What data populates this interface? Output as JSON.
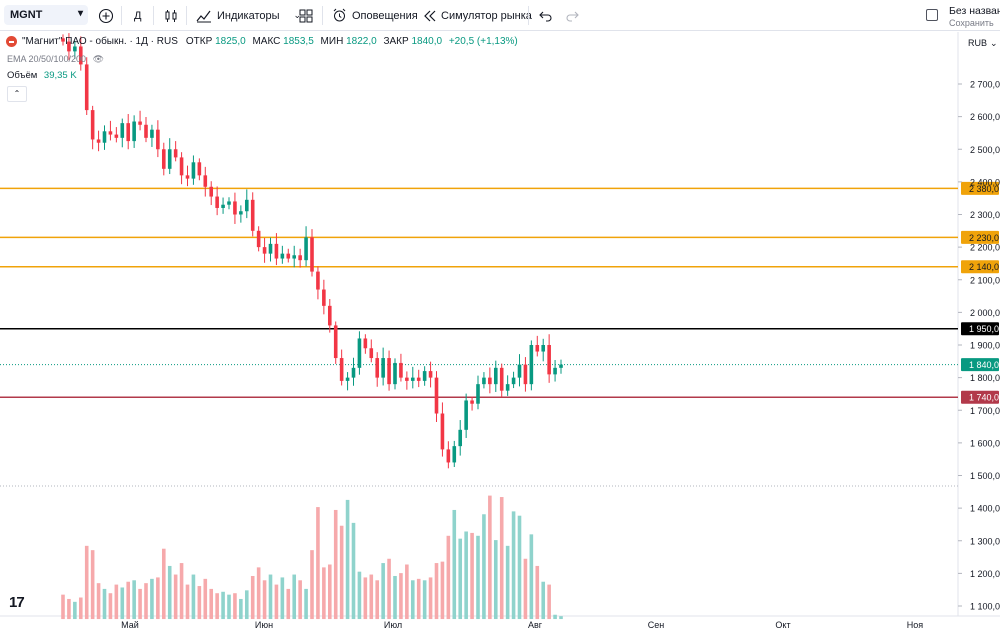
{
  "toolbar": {
    "symbol": "MGNT",
    "interval": "Д",
    "indicators": "Индикаторы",
    "alerts": "Оповещения",
    "replay": "Симулятор рынка",
    "layout_name": "Без названия",
    "save": "Сохранить"
  },
  "legend": {
    "title": "\"Магнит\" ПАО - обыкн. · 1Д · RUS",
    "open_label": "ОТКР",
    "open": "1825,0",
    "high_label": "МАКС",
    "high": "1853,5",
    "low_label": "МИН",
    "low": "1822,0",
    "close_label": "ЗАКР",
    "close": "1840,0",
    "change": "+20,5 (+1,13%)",
    "ema": "EMA 20/50/100/200",
    "volume_label": "Объём",
    "volume_value": "39,35 K"
  },
  "currency": "RUB",
  "colors": {
    "up": "#089981",
    "down": "#f23645",
    "vol_up": "#8fd3cc",
    "vol_down": "#f6a9ab",
    "level": "#f0a30a",
    "support": "#b2394a",
    "price": "#089981"
  },
  "chart_data": {
    "type": "candlestick",
    "y_unit": "RUB",
    "ylim": [
      1060,
      2830
    ],
    "y_ticks": [
      "2700,0",
      "2600,0",
      "2500,0",
      "2400,0",
      "2300,0",
      "2200,0",
      "2100,0",
      "2000,0",
      "1900,0",
      "1800,0",
      "1700,0",
      "1600,0",
      "1500,0",
      "1400,0",
      "1300,0",
      "1200,0",
      "1100,0"
    ],
    "x_labels": [
      "Май",
      "Июн",
      "Июл",
      "Авг",
      "Сен",
      "Окт",
      "Ноя"
    ],
    "horizontal_levels": [
      {
        "label": "2 380,0",
        "value": 2380,
        "color": "#f0a30a"
      },
      {
        "label": "2 230,0",
        "value": 2230,
        "color": "#f0a30a"
      },
      {
        "label": "2 140,0",
        "value": 2140,
        "color": "#f0a30a"
      },
      {
        "label": "1 950,0",
        "value": 1950,
        "color": "#000000"
      },
      {
        "label": "1 740,0",
        "value": 1740,
        "color": "#b2394a"
      }
    ],
    "last_price_label": "1 840,0",
    "last_price": 1840,
    "closes": [
      2830,
      2800,
      2815,
      2760,
      2620,
      2530,
      2520,
      2555,
      2545,
      2535,
      2580,
      2525,
      2585,
      2575,
      2535,
      2560,
      2500,
      2440,
      2500,
      2475,
      2420,
      2410,
      2460,
      2420,
      2385,
      2355,
      2320,
      2330,
      2340,
      2300,
      2310,
      2345,
      2250,
      2200,
      2180,
      2210,
      2165,
      2180,
      2165,
      2175,
      2160,
      2230,
      2125,
      2070,
      2020,
      1960,
      1860,
      1790,
      1800,
      1830,
      1920,
      1890,
      1860,
      1800,
      1860,
      1780,
      1845,
      1800,
      1790,
      1800,
      1790,
      1820,
      1800,
      1690,
      1580,
      1540,
      1590,
      1640,
      1730,
      1720,
      1780,
      1800,
      1780,
      1830,
      1760,
      1780,
      1800,
      1840,
      1780,
      1900,
      1880,
      1900,
      1810,
      1830,
      1840
    ],
    "volume_fraction": [
      0.17,
      0.14,
      0.12,
      0.15,
      0.51,
      0.48,
      0.25,
      0.21,
      0.18,
      0.24,
      0.22,
      0.26,
      0.27,
      0.21,
      0.25,
      0.28,
      0.29,
      0.49,
      0.37,
      0.31,
      0.39,
      0.24,
      0.31,
      0.23,
      0.28,
      0.21,
      0.18,
      0.19,
      0.17,
      0.18,
      0.14,
      0.2,
      0.3,
      0.36,
      0.27,
      0.31,
      0.24,
      0.29,
      0.21,
      0.31,
      0.27,
      0.21,
      0.48,
      0.78,
      0.36,
      0.38,
      0.76,
      0.65,
      0.83,
      0.67,
      0.33,
      0.29,
      0.31,
      0.27,
      0.39,
      0.42,
      0.3,
      0.32,
      0.38,
      0.27,
      0.28,
      0.27,
      0.29,
      0.39,
      0.4,
      0.58,
      0.76,
      0.56,
      0.61,
      0.6,
      0.58,
      0.73,
      0.86,
      0.55,
      0.85,
      0.51,
      0.75,
      0.72,
      0.42,
      0.59,
      0.37,
      0.26,
      0.24,
      0.03,
      0.02
    ],
    "volume_y_range": [
      1060,
      1500
    ]
  }
}
